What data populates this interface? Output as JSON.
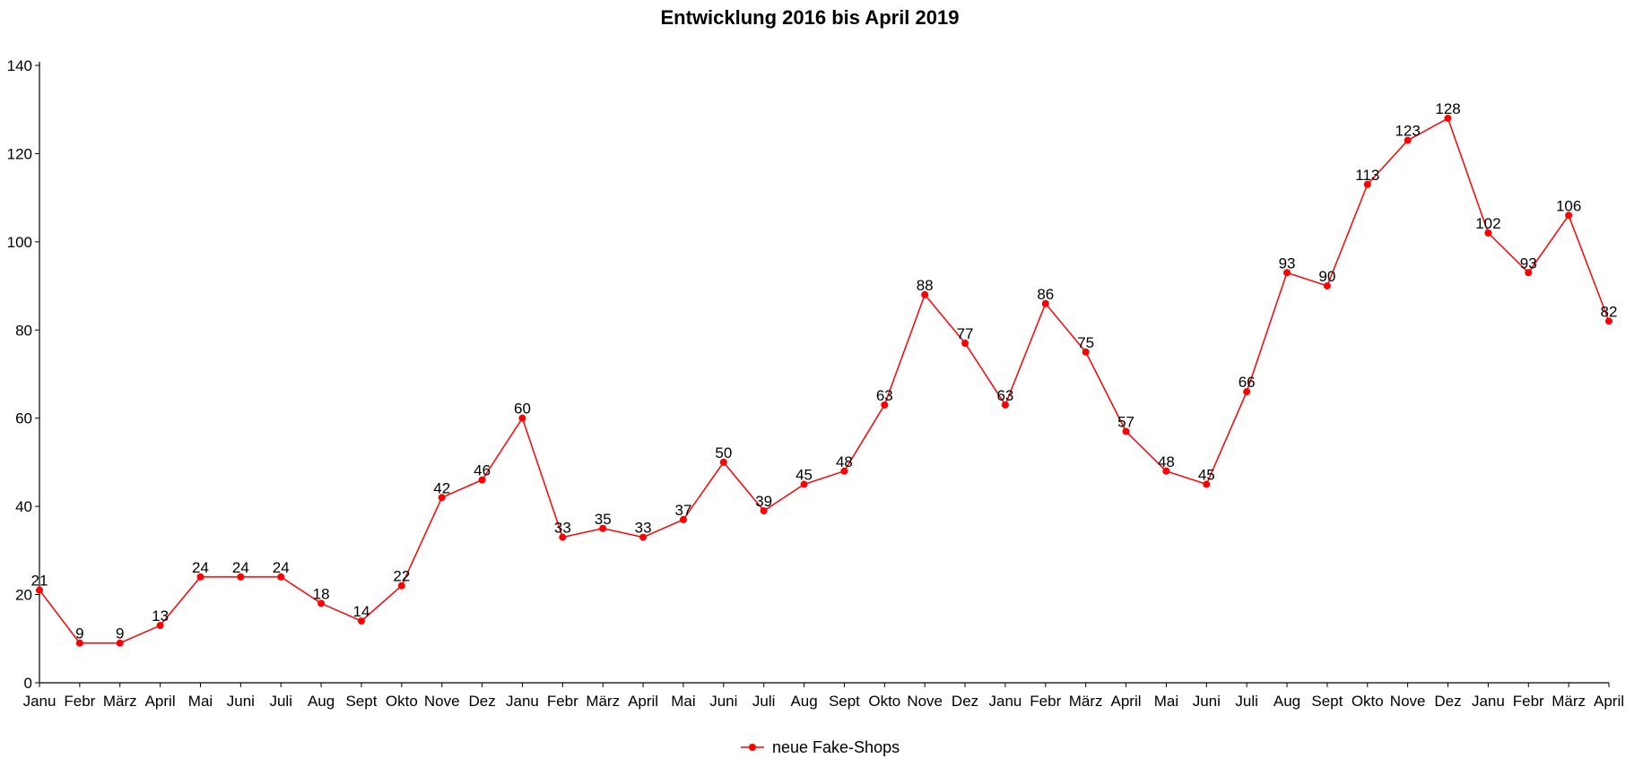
{
  "chart_data": {
    "type": "line",
    "title": "Entwicklung 2016 bis April 2019",
    "xlabel": "",
    "ylabel": "",
    "ylim": [
      0,
      140
    ],
    "yticks": [
      0,
      20,
      40,
      60,
      80,
      100,
      120,
      140
    ],
    "grid": false,
    "legend_position": "bottom",
    "categories": [
      "Janu",
      "Febr",
      "März",
      "April",
      "Mai",
      "Juni",
      "Juli",
      "Aug",
      "Sept",
      "Okto",
      "Nove",
      "Dez",
      "Janu",
      "Febr",
      "März",
      "April",
      "Mai",
      "Juni",
      "Juli",
      "Aug",
      "Sept",
      "Okto",
      "Nove",
      "Dez",
      "Janu",
      "Febr",
      "März",
      "April",
      "Mai",
      "Juni",
      "Juli",
      "Aug",
      "Sept",
      "Okto",
      "Nove",
      "Dez",
      "Janu",
      "Febr",
      "März",
      "April"
    ],
    "series": [
      {
        "name": "neue Fake-Shops",
        "color": "#ff0000",
        "values": [
          21,
          9,
          9,
          13,
          24,
          24,
          24,
          18,
          14,
          22,
          42,
          46,
          60,
          33,
          35,
          33,
          37,
          50,
          39,
          45,
          48,
          63,
          88,
          77,
          63,
          86,
          75,
          57,
          48,
          45,
          66,
          93,
          90,
          113,
          123,
          128,
          102,
          93,
          106,
          82
        ]
      }
    ]
  }
}
